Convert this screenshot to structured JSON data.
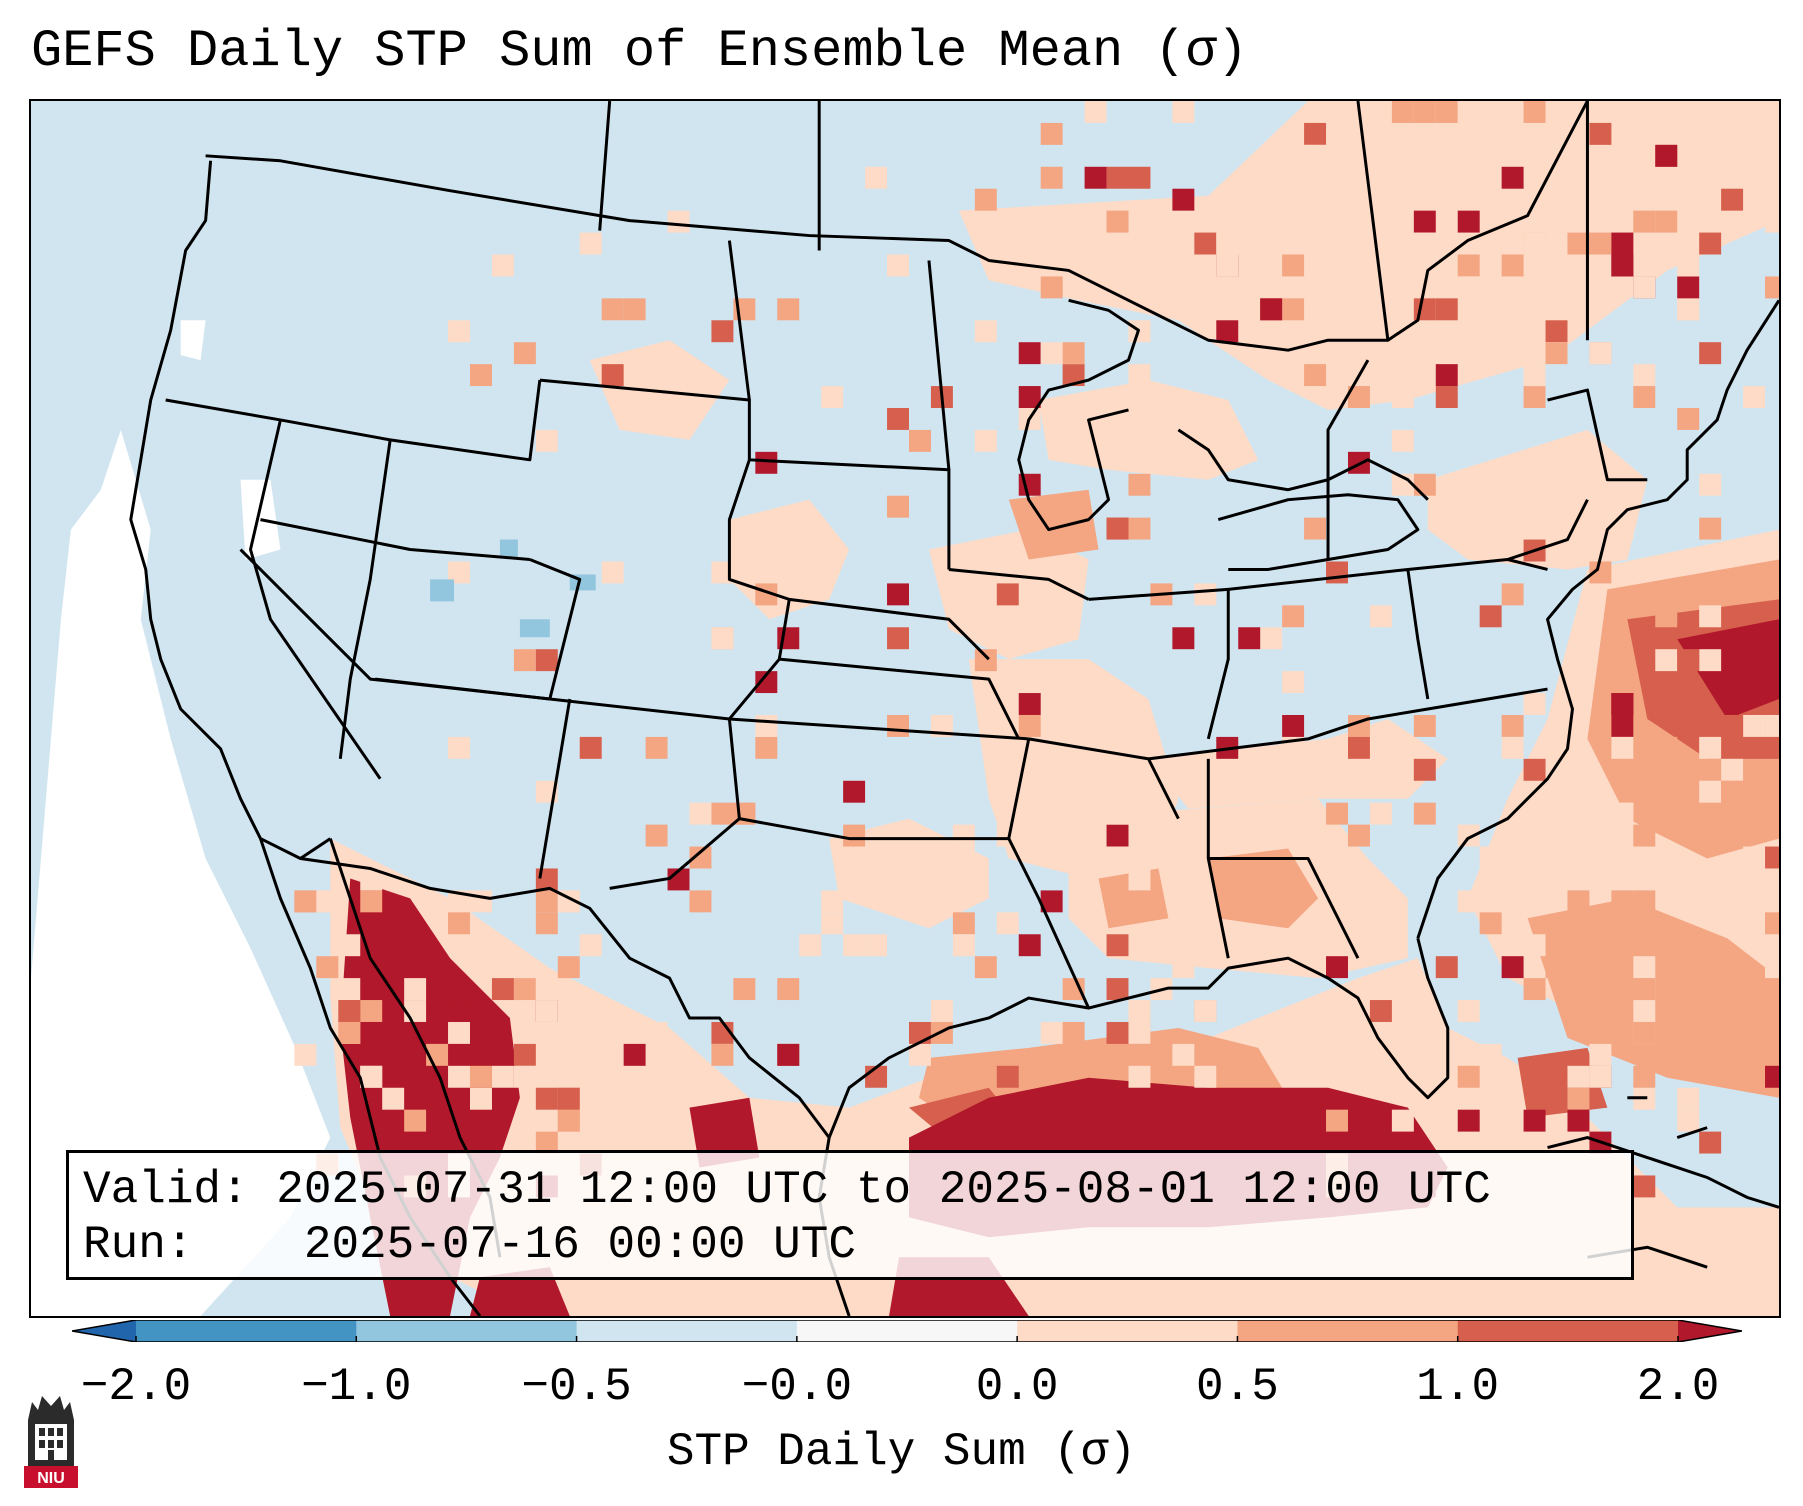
{
  "title": "GEFS Daily STP Sum of Ensemble Mean (σ)",
  "info": {
    "valid_label": "Valid:",
    "valid_value": "2025-07-31 12:00 UTC to 2025-08-01 12:00 UTC",
    "run_label": "Run:",
    "run_value": "2025-07-16 00:00 UTC"
  },
  "colorbar": {
    "label": "STP Daily Sum (σ)",
    "tick_labels": [
      "−2.0",
      "−1.0",
      "−0.5",
      "−0.0",
      "0.0",
      "0.5",
      "1.0",
      "2.0"
    ],
    "bins": [
      {
        "range": "-2.0 to -1.0",
        "color": "#4393c3"
      },
      {
        "range": "-1.0 to -0.5",
        "color": "#92c5de"
      },
      {
        "range": "-0.5 to -0.0",
        "color": "#d1e5f0"
      },
      {
        "range": "-0.0 to 0.0",
        "color": "#f7f7f7"
      },
      {
        "range": "0.0 to 0.5",
        "color": "#fddbc7"
      },
      {
        "range": "0.5 to 1.0",
        "color": "#f4a582"
      },
      {
        "range": "1.0 to 2.0",
        "color": "#d6604d"
      }
    ],
    "under_color": "#2166ac",
    "over_color": "#b2182b"
  },
  "logo": {
    "text": "NIU",
    "icon": "niu-tower-icon",
    "color": "#c8102e"
  }
}
